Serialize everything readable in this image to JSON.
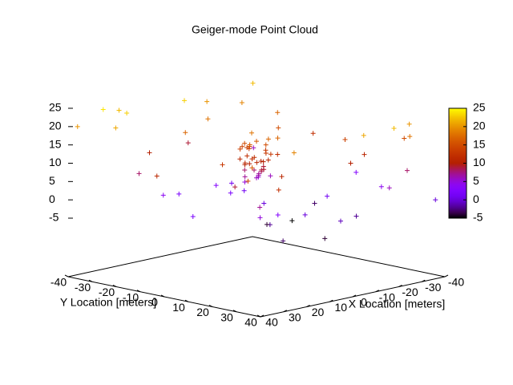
{
  "chart_data": {
    "type": "scatter3d",
    "title": "Geiger-mode Point Cloud",
    "xlabel": "X Location [meters]",
    "ylabel": "Y Location [meters]",
    "xlim": [
      -40,
      40
    ],
    "ylim": [
      -40,
      40
    ],
    "zlim": [
      -5,
      25
    ],
    "cblim": [
      -5,
      25
    ],
    "xticks": [
      -40,
      -30,
      -20,
      -10,
      0,
      10,
      20,
      30,
      40
    ],
    "yticks": [
      -40,
      -30,
      -20,
      -10,
      0,
      10,
      20,
      30,
      40
    ],
    "zticks": [
      -5,
      0,
      5,
      10,
      15,
      20,
      25
    ],
    "cbticks": [
      -5,
      0,
      5,
      10,
      15,
      20,
      25
    ],
    "palette": "gnuplot",
    "x": [
      -5,
      -3,
      -1,
      0,
      2,
      4,
      6,
      -6,
      -2,
      1,
      3,
      5,
      -4,
      0,
      2,
      -1,
      3,
      -3,
      1,
      4,
      -2,
      0,
      5,
      -5,
      2,
      -1,
      1,
      3,
      -3,
      0,
      -2,
      2,
      4,
      -4,
      1,
      -1,
      0,
      3,
      -2,
      2,
      -35,
      -30,
      -38,
      -20,
      -10,
      25,
      30,
      35,
      20,
      -25,
      -30,
      28,
      35,
      30,
      -15,
      15,
      -28,
      20,
      -5,
      10,
      -35,
      38,
      -20,
      25,
      -32,
      33,
      -10,
      12,
      -38,
      38,
      -25,
      22,
      -15,
      18,
      5,
      -8,
      30,
      -30,
      0,
      15,
      -20,
      8,
      -5,
      25,
      -12,
      2,
      -3,
      6,
      -36,
      36,
      -22,
      12,
      0,
      -18,
      38,
      -38,
      10,
      28,
      -28,
      5
    ],
    "y": [
      -4,
      -2,
      0,
      2,
      4,
      -1,
      1,
      3,
      -5,
      -3,
      0,
      2,
      5,
      -2,
      1,
      3,
      -4,
      0,
      4,
      -3,
      2,
      -1,
      0,
      1,
      -2,
      5,
      -5,
      3,
      -1,
      0,
      1,
      -3,
      2,
      0,
      -4,
      4,
      0,
      -2,
      3,
      -1,
      30,
      35,
      25,
      38,
      35,
      -30,
      -35,
      -25,
      -38,
      -30,
      -20,
      25,
      30,
      38,
      -35,
      30,
      10,
      5,
      -25,
      -20,
      -10,
      -5,
      20,
      15,
      32,
      33,
      -38,
      -33,
      5,
      10,
      28,
      30,
      15,
      -15,
      25,
      -18,
      -10,
      -30,
      35,
      20,
      5,
      12,
      10,
      35,
      30,
      5,
      -8,
      -5,
      -36,
      36,
      -12,
      22,
      -30,
      38,
      -38,
      38,
      38,
      -22,
      18,
      -12
    ],
    "z": [
      5,
      6,
      7,
      8,
      9,
      10,
      11,
      12,
      13,
      14,
      15,
      16,
      17,
      18,
      12,
      13,
      11,
      10,
      9,
      14,
      15,
      8,
      7,
      6,
      12,
      13,
      14,
      11,
      10,
      16,
      9,
      8,
      12,
      13,
      15,
      17,
      6,
      5,
      11,
      10,
      20,
      18,
      15,
      22,
      21,
      23,
      24,
      21,
      22,
      19,
      17,
      16,
      14,
      12,
      20,
      19,
      14,
      13,
      18,
      17,
      12,
      11,
      10,
      9,
      8,
      7,
      9,
      10,
      3,
      2,
      4,
      3,
      1,
      2,
      0,
      1,
      4,
      6,
      -1,
      -2,
      -3,
      -4,
      -5,
      -3,
      -2,
      0,
      1,
      2,
      22,
      5,
      15,
      11,
      23,
      6,
      20,
      0,
      -4,
      8,
      11,
      3
    ]
  }
}
